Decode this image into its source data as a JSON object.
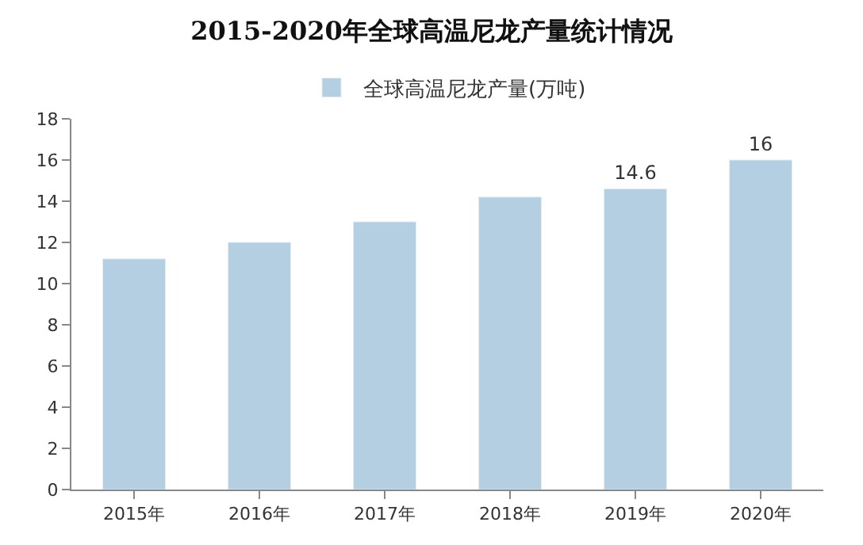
{
  "chart_data": {
    "type": "bar",
    "title": "2015-2020年全球高温尼龙产量统计情况",
    "categories": [
      "2015年",
      "2016年",
      "2017年",
      "2018年",
      "2019年",
      "2020年"
    ],
    "series": [
      {
        "name": "全球高温尼龙产量(万吨)",
        "color": "#b4cfe2",
        "values": [
          11.2,
          12,
          13,
          14.2,
          14.6,
          16
        ],
        "value_labels": [
          null,
          null,
          null,
          null,
          "14.6",
          "16"
        ]
      }
    ],
    "ylim": [
      0,
      18
    ],
    "yticks": [
      0,
      2,
      4,
      6,
      8,
      10,
      12,
      14,
      16,
      18
    ],
    "legend": "top"
  }
}
